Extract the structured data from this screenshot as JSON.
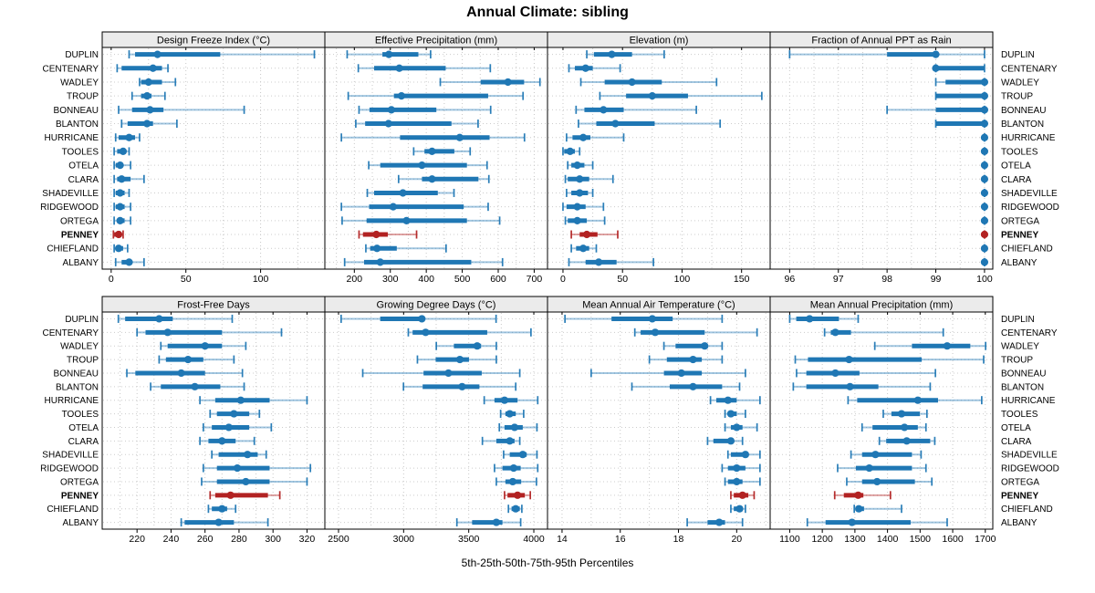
{
  "chart_data": {
    "type": "scatter",
    "variant": "trellis-percentile-interval-plot",
    "title": "Annual Climate: sibling",
    "caption": "5th-25th-50th-75th-95th Percentiles",
    "percentiles": [
      5,
      25,
      50,
      75,
      95
    ],
    "legend_position": "none",
    "grid": "dotted",
    "stations": [
      "DUPLIN",
      "CENTENARY",
      "WADLEY",
      "TROUP",
      "BONNEAU",
      "BLANTON",
      "HURRICANE",
      "TOOLES",
      "OTELA",
      "CLARA",
      "SHADEVILLE",
      "RIDGEWOOD",
      "ORTEGA",
      "PENNEY",
      "CHIEFLAND",
      "ALBANY"
    ],
    "highlight_station": "PENNEY",
    "colors": {
      "series": "#1f77b4",
      "highlight": "#b22222",
      "gridline": "#c8c8c8",
      "row_guide": "#cccccc",
      "panel_header_bg": "#ebebeb",
      "panel_border": "#000000",
      "text": "#000000"
    },
    "panels": [
      {
        "title": "Design Freeze Index (°C)",
        "grid_row": 0,
        "ticks": [
          0,
          50,
          100
        ],
        "domain": [
          -6,
          143
        ],
        "grid_step": 25,
        "values": [
          [
            12,
            16,
            31,
            73,
            136
          ],
          [
            4,
            7,
            28,
            34,
            38
          ],
          [
            19,
            20,
            25,
            34,
            43
          ],
          [
            14,
            20,
            24,
            27,
            36
          ],
          [
            5,
            14,
            26,
            35,
            89
          ],
          [
            7,
            11,
            24,
            28,
            44
          ],
          [
            3,
            5,
            12,
            16,
            19
          ],
          [
            2,
            4,
            8,
            10,
            12
          ],
          [
            2,
            3,
            6,
            8,
            13
          ],
          [
            2,
            4,
            7,
            13,
            22
          ],
          [
            2,
            3,
            6,
            9,
            12
          ],
          [
            2,
            3,
            6,
            9,
            13
          ],
          [
            2,
            4,
            6,
            9,
            13
          ],
          [
            1.5,
            2,
            5,
            7,
            8
          ],
          [
            2,
            3,
            5,
            8,
            11
          ],
          [
            3,
            7,
            12,
            14,
            22
          ]
        ]
      },
      {
        "title": "Effective Precipitation (mm)",
        "grid_row": 0,
        "ticks": [
          200,
          300,
          400,
          500,
          600,
          700
        ],
        "domain": [
          118,
          737
        ],
        "grid_step": 50,
        "values": [
          [
            180,
            278,
            296,
            378,
            412
          ],
          [
            211,
            255,
            325,
            454,
            578
          ],
          [
            439,
            551,
            627,
            672,
            716
          ],
          [
            183,
            310,
            331,
            572,
            669
          ],
          [
            213,
            242,
            303,
            428,
            579
          ],
          [
            204,
            230,
            295,
            470,
            544
          ],
          [
            164,
            327,
            493,
            576,
            673
          ],
          [
            365,
            395,
            416,
            478,
            522
          ],
          [
            240,
            272,
            388,
            513,
            569
          ],
          [
            323,
            388,
            416,
            545,
            574
          ],
          [
            236,
            255,
            335,
            432,
            477
          ],
          [
            164,
            241,
            308,
            504,
            572
          ],
          [
            166,
            234,
            345,
            513,
            604
          ],
          [
            213,
            224,
            261,
            293,
            373
          ],
          [
            232,
            244,
            263,
            318,
            455
          ],
          [
            173,
            227,
            272,
            525,
            612
          ]
        ]
      },
      {
        "title": "Elevation (m)",
        "grid_row": 0,
        "ticks": [
          0,
          50,
          100,
          150
        ],
        "domain": [
          -13,
          174
        ],
        "grid_step": 25,
        "values": [
          [
            20,
            26,
            41,
            58,
            85
          ],
          [
            5,
            10,
            19,
            25,
            48
          ],
          [
            15,
            35,
            58,
            83,
            129
          ],
          [
            31,
            53,
            75,
            105,
            167
          ],
          [
            11,
            18,
            34,
            51,
            112
          ],
          [
            13,
            28,
            44,
            77,
            132
          ],
          [
            3,
            8,
            17,
            23,
            51
          ],
          [
            0,
            1,
            6,
            10,
            14
          ],
          [
            4,
            7,
            12,
            18,
            25
          ],
          [
            2,
            4,
            14,
            22,
            42
          ],
          [
            3,
            7,
            14,
            21,
            25
          ],
          [
            0,
            3,
            12,
            19,
            34
          ],
          [
            2,
            4,
            12,
            20,
            35
          ],
          [
            7,
            14,
            20,
            29,
            46
          ],
          [
            7,
            11,
            17,
            22,
            28
          ],
          [
            5,
            19,
            30,
            45,
            76
          ]
        ]
      },
      {
        "title": "Fraction of Annual PPT as Rain",
        "grid_row": 0,
        "ticks": [
          96,
          97,
          98,
          99,
          100
        ],
        "domain": [
          95.6,
          100.17
        ],
        "grid_step": 0.5,
        "values": [
          [
            96,
            98,
            99,
            99,
            100
          ],
          [
            99,
            99,
            99,
            100,
            100
          ],
          [
            99,
            99.2,
            100,
            100,
            100
          ],
          [
            99,
            99,
            100,
            100,
            100
          ],
          [
            98,
            99,
            100,
            100,
            100
          ],
          [
            99,
            99,
            100,
            100,
            100
          ],
          [
            100,
            100,
            100,
            100,
            100
          ],
          [
            100,
            100,
            100,
            100,
            100
          ],
          [
            100,
            100,
            100,
            100,
            100
          ],
          [
            100,
            100,
            100,
            100,
            100
          ],
          [
            100,
            100,
            100,
            100,
            100
          ],
          [
            100,
            100,
            100,
            100,
            100
          ],
          [
            100,
            100,
            100,
            100,
            100
          ],
          [
            100,
            100,
            100,
            100,
            100
          ],
          [
            100,
            100,
            100,
            100,
            100
          ],
          [
            100,
            100,
            100,
            100,
            100
          ]
        ]
      },
      {
        "title": "Frost-Free Days",
        "grid_row": 1,
        "ticks": [
          220,
          240,
          260,
          280,
          300,
          320
        ],
        "domain": [
          199.5,
          330.5
        ],
        "grid_step": 10,
        "values": [
          [
            209,
            213,
            233,
            241,
            276
          ],
          [
            220,
            225,
            238,
            270,
            305
          ],
          [
            234,
            238,
            260,
            270,
            284
          ],
          [
            233,
            237,
            250,
            259,
            277
          ],
          [
            214,
            219,
            246,
            260,
            282
          ],
          [
            228,
            234,
            254,
            269,
            283
          ],
          [
            257,
            266,
            281,
            298,
            320
          ],
          [
            263,
            267,
            277,
            286,
            292
          ],
          [
            259,
            264,
            274,
            286,
            299
          ],
          [
            257,
            262,
            270,
            278,
            289
          ],
          [
            264,
            268,
            285,
            291,
            296
          ],
          [
            259,
            267,
            279,
            298,
            322
          ],
          [
            258,
            267,
            284,
            298,
            320
          ],
          [
            263,
            266,
            275,
            297,
            304
          ],
          [
            262,
            264,
            270,
            273,
            278
          ],
          [
            246,
            248,
            268,
            277,
            297
          ]
        ]
      },
      {
        "title": "Growing Degree Days (°C)",
        "grid_row": 1,
        "ticks": [
          2500,
          3000,
          3500,
          4000
        ],
        "domain": [
          2395,
          4105
        ],
        "grid_step": 250,
        "values": [
          [
            2520,
            2820,
            3140,
            3160,
            3710
          ],
          [
            3036,
            3069,
            3169,
            3642,
            3978
          ],
          [
            3251,
            3386,
            3565,
            3595,
            3712
          ],
          [
            3106,
            3246,
            3432,
            3502,
            3712
          ],
          [
            2686,
            3153,
            3344,
            3600,
            3892
          ],
          [
            2999,
            3146,
            3449,
            3582,
            3861
          ],
          [
            3619,
            3698,
            3775,
            3875,
            4030
          ],
          [
            3745,
            3782,
            3815,
            3861,
            3922
          ],
          [
            3735,
            3775,
            3852,
            3915,
            4024
          ],
          [
            3605,
            3712,
            3815,
            3852,
            3892
          ],
          [
            3768,
            3815,
            3915,
            3945,
            4024
          ],
          [
            3698,
            3759,
            3845,
            3899,
            4030
          ],
          [
            3712,
            3782,
            3838,
            3903,
            4020
          ],
          [
            3775,
            3798,
            3875,
            3931,
            3973
          ],
          [
            3805,
            3829,
            3861,
            3892,
            3908
          ],
          [
            3409,
            3526,
            3712,
            3759,
            3899
          ]
        ]
      },
      {
        "title": "Mean Annual Air Temperature (°C)",
        "grid_row": 1,
        "ticks": [
          14,
          16,
          18,
          20
        ],
        "domain": [
          13.5,
          21.15
        ],
        "grid_step": 1,
        "values": [
          [
            14.1,
            15.7,
            17.1,
            17.8,
            19.5
          ],
          [
            16.5,
            16.7,
            17.2,
            18.9,
            20.7
          ],
          [
            17.5,
            17.9,
            18.9,
            19.0,
            19.5
          ],
          [
            17.0,
            17.6,
            18.5,
            18.8,
            19.5
          ],
          [
            15.0,
            17.5,
            18.1,
            18.8,
            20.3
          ],
          [
            16.4,
            17.7,
            18.5,
            19.5,
            20.1
          ],
          [
            19.1,
            19.3,
            19.7,
            20.0,
            20.8
          ],
          [
            19.6,
            19.7,
            19.8,
            20.0,
            20.3
          ],
          [
            19.6,
            19.8,
            20.0,
            20.2,
            20.7
          ],
          [
            19.0,
            19.2,
            19.8,
            19.9,
            20.2
          ],
          [
            19.7,
            19.8,
            20.3,
            20.4,
            20.8
          ],
          [
            19.5,
            19.7,
            20.0,
            20.3,
            20.8
          ],
          [
            19.6,
            19.7,
            20.0,
            20.2,
            20.8
          ],
          [
            19.8,
            19.9,
            20.2,
            20.4,
            20.6
          ],
          [
            19.8,
            19.9,
            20.1,
            20.2,
            20.3
          ],
          [
            18.3,
            19.0,
            19.4,
            19.6,
            20.2
          ]
        ]
      },
      {
        "title": "Mean Annual Precipitation (mm)",
        "grid_row": 1,
        "ticks": [
          1100,
          1200,
          1300,
          1400,
          1500,
          1600,
          1700
        ],
        "domain": [
          1040,
          1723
        ],
        "grid_step": 100,
        "values": [
          [
            1100,
            1120,
            1161,
            1251,
            1310
          ],
          [
            1207,
            1226,
            1240,
            1288,
            1571
          ],
          [
            1361,
            1475,
            1583,
            1654,
            1701
          ],
          [
            1117,
            1156,
            1282,
            1505,
            1695
          ],
          [
            1121,
            1151,
            1240,
            1314,
            1547
          ],
          [
            1111,
            1151,
            1285,
            1372,
            1531
          ],
          [
            1279,
            1307,
            1493,
            1555,
            1689
          ],
          [
            1387,
            1412,
            1443,
            1499,
            1521
          ],
          [
            1322,
            1354,
            1452,
            1493,
            1518
          ],
          [
            1375,
            1396,
            1459,
            1531,
            1545
          ],
          [
            1288,
            1322,
            1363,
            1475,
            1503
          ],
          [
            1247,
            1303,
            1344,
            1475,
            1518
          ],
          [
            1275,
            1322,
            1368,
            1484,
            1536
          ],
          [
            1238,
            1266,
            1310,
            1326,
            1409
          ],
          [
            1298,
            1303,
            1312,
            1328,
            1443
          ],
          [
            1154,
            1210,
            1291,
            1471,
            1583
          ]
        ]
      }
    ]
  }
}
